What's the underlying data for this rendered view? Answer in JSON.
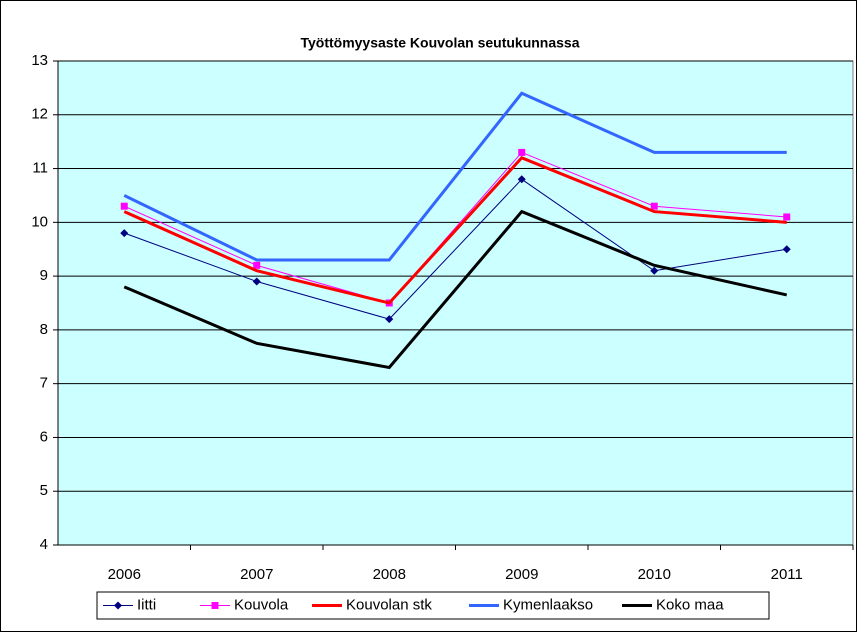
{
  "chart_data": {
    "type": "line",
    "title": "Työttömyysaste Kouvolan seutukunnassa",
    "categories": [
      "2006",
      "2007",
      "2008",
      "2009",
      "2010",
      "2011"
    ],
    "series": [
      {
        "name": "Iitti",
        "color": "#000080",
        "marker": "diamond",
        "width": 1,
        "values": [
          9.8,
          8.9,
          8.2,
          10.8,
          9.1,
          9.5
        ]
      },
      {
        "name": "Kouvola",
        "color": "#ff00ff",
        "marker": "square",
        "width": 1,
        "values": [
          10.3,
          9.2,
          8.5,
          11.3,
          10.3,
          10.1
        ]
      },
      {
        "name": "Kouvolan stk",
        "color": "#ff0000",
        "marker": "none",
        "width": 3,
        "values": [
          10.2,
          9.1,
          8.5,
          11.2,
          10.2,
          10.0
        ]
      },
      {
        "name": "Kymenlaakso",
        "color": "#3366ff",
        "marker": "none",
        "width": 3,
        "values": [
          10.5,
          9.3,
          9.3,
          12.4,
          11.3,
          11.3
        ]
      },
      {
        "name": "Koko maa",
        "color": "#000000",
        "marker": "none",
        "width": 3,
        "values": [
          8.8,
          7.75,
          7.3,
          10.2,
          9.2,
          8.65
        ]
      }
    ],
    "ylim": [
      4,
      13
    ],
    "yticks": [
      4,
      5,
      6,
      7,
      8,
      9,
      10,
      11,
      12,
      13
    ],
    "grid": true,
    "legend": "bottom"
  }
}
